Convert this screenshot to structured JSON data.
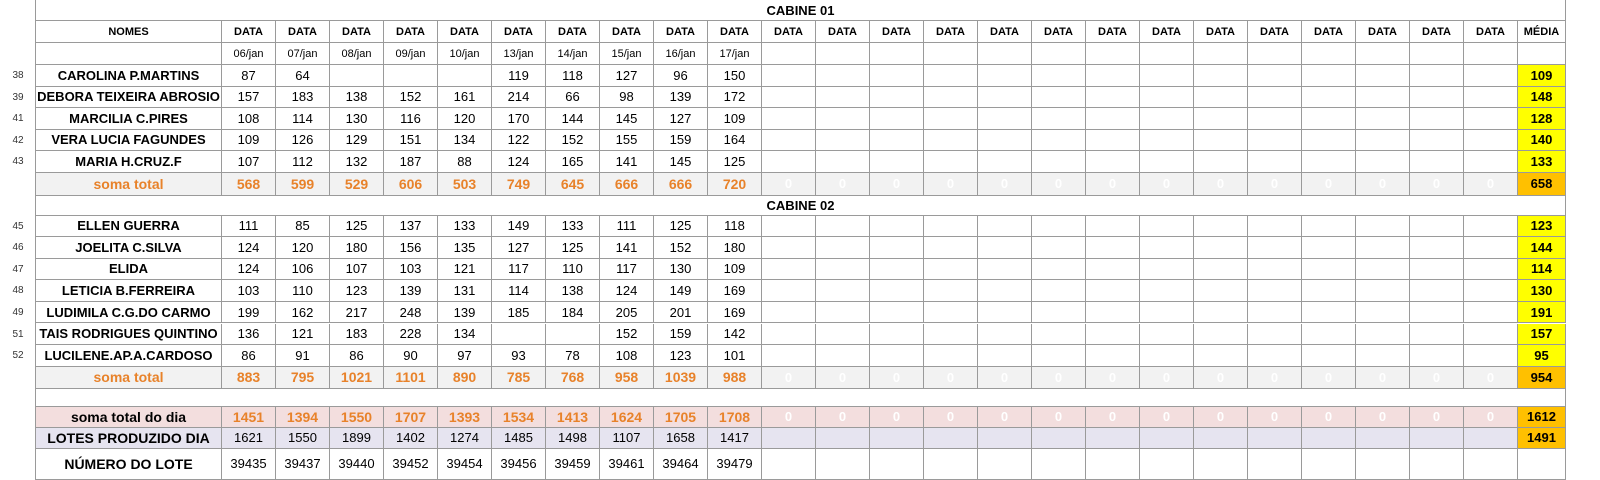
{
  "headers": {
    "cabin1_title": "CABINE 01",
    "cabin2_title": "CABINE 02",
    "names_col": "NOMES",
    "date_label": "DATA",
    "media_label": "MÉDIA",
    "dates": [
      "06/jan",
      "07/jan",
      "08/jan",
      "09/jan",
      "10/jan",
      "13/jan",
      "14/jan",
      "15/jan",
      "16/jan",
      "17/jan"
    ]
  },
  "cabin1": {
    "rows": [
      {
        "num": "38",
        "name": "CAROLINA P.MARTINS",
        "values": [
          "87",
          "64",
          "",
          "",
          "",
          "119",
          "118",
          "127",
          "96",
          "150"
        ],
        "media": "109"
      },
      {
        "num": "39",
        "name": "DEBORA TEIXEIRA ABROSIO",
        "values": [
          "157",
          "183",
          "138",
          "152",
          "161",
          "214",
          "66",
          "98",
          "139",
          "172"
        ],
        "media": "148"
      },
      {
        "num": "41",
        "name": "MARCILIA C.PIRES",
        "values": [
          "108",
          "114",
          "130",
          "116",
          "120",
          "170",
          "144",
          "145",
          "127",
          "109"
        ],
        "media": "128"
      },
      {
        "num": "42",
        "name": "VERA LUCIA FAGUNDES",
        "values": [
          "109",
          "126",
          "129",
          "151",
          "134",
          "122",
          "152",
          "155",
          "159",
          "164"
        ],
        "media": "140"
      },
      {
        "num": "43",
        "name": "MARIA H.CRUZ.F",
        "values": [
          "107",
          "112",
          "132",
          "187",
          "88",
          "124",
          "165",
          "141",
          "145",
          "125"
        ],
        "media": "133"
      }
    ],
    "total_label": "soma total",
    "totals": [
      "568",
      "599",
      "529",
      "606",
      "503",
      "749",
      "645",
      "666",
      "666",
      "720"
    ],
    "total_media": "658"
  },
  "cabin2": {
    "rows": [
      {
        "num": "45",
        "name": "ELLEN GUERRA",
        "values": [
          "111",
          "85",
          "125",
          "137",
          "133",
          "149",
          "133",
          "111",
          "125",
          "118"
        ],
        "media": "123"
      },
      {
        "num": "46",
        "name": "JOELITA C.SILVA",
        "values": [
          "124",
          "120",
          "180",
          "156",
          "135",
          "127",
          "125",
          "141",
          "152",
          "180"
        ],
        "media": "144"
      },
      {
        "num": "47",
        "name": "ELIDA",
        "values": [
          "124",
          "106",
          "107",
          "103",
          "121",
          "117",
          "110",
          "117",
          "130",
          "109"
        ],
        "media": "114"
      },
      {
        "num": "48",
        "name": "LETICIA B.FERREIRA",
        "values": [
          "103",
          "110",
          "123",
          "139",
          "131",
          "114",
          "138",
          "124",
          "149",
          "169"
        ],
        "media": "130"
      },
      {
        "num": "49",
        "name": "LUDIMILA C.G.DO CARMO",
        "values": [
          "199",
          "162",
          "217",
          "248",
          "139",
          "185",
          "184",
          "205",
          "201",
          "169"
        ],
        "media": "191"
      },
      {
        "num": "51",
        "name": "TAIS RODRIGUES QUINTINO",
        "values": [
          "136",
          "121",
          "183",
          "228",
          "134",
          "",
          "",
          "152",
          "159",
          "142"
        ],
        "media": "157"
      },
      {
        "num": "52",
        "name": "LUCILENE.AP.A.CARDOSO",
        "values": [
          "86",
          "91",
          "86",
          "90",
          "97",
          "93",
          "78",
          "108",
          "123",
          "101"
        ],
        "media": "95"
      }
    ],
    "total_label": "soma total",
    "totals": [
      "883",
      "795",
      "1021",
      "1101",
      "890",
      "785",
      "768",
      "958",
      "1039",
      "988"
    ],
    "total_media": "954"
  },
  "zero_value": "0",
  "day_total": {
    "label": "soma total  do dia",
    "values": [
      "1451",
      "1394",
      "1550",
      "1707",
      "1393",
      "1534",
      "1413",
      "1624",
      "1705",
      "1708"
    ],
    "media": "1612"
  },
  "lots_produced": {
    "label": "LOTES PRODUZIDO DIA",
    "values": [
      "1621",
      "1550",
      "1899",
      "1402",
      "1274",
      "1485",
      "1498",
      "1107",
      "1658",
      "1417"
    ],
    "media": "1491"
  },
  "lot_number": {
    "label": "NÚMERO DO LOTE",
    "values": [
      "39435",
      "39437",
      "39440",
      "39452",
      "39454",
      "39456",
      "39459",
      "39461",
      "39464",
      "39479"
    ]
  }
}
